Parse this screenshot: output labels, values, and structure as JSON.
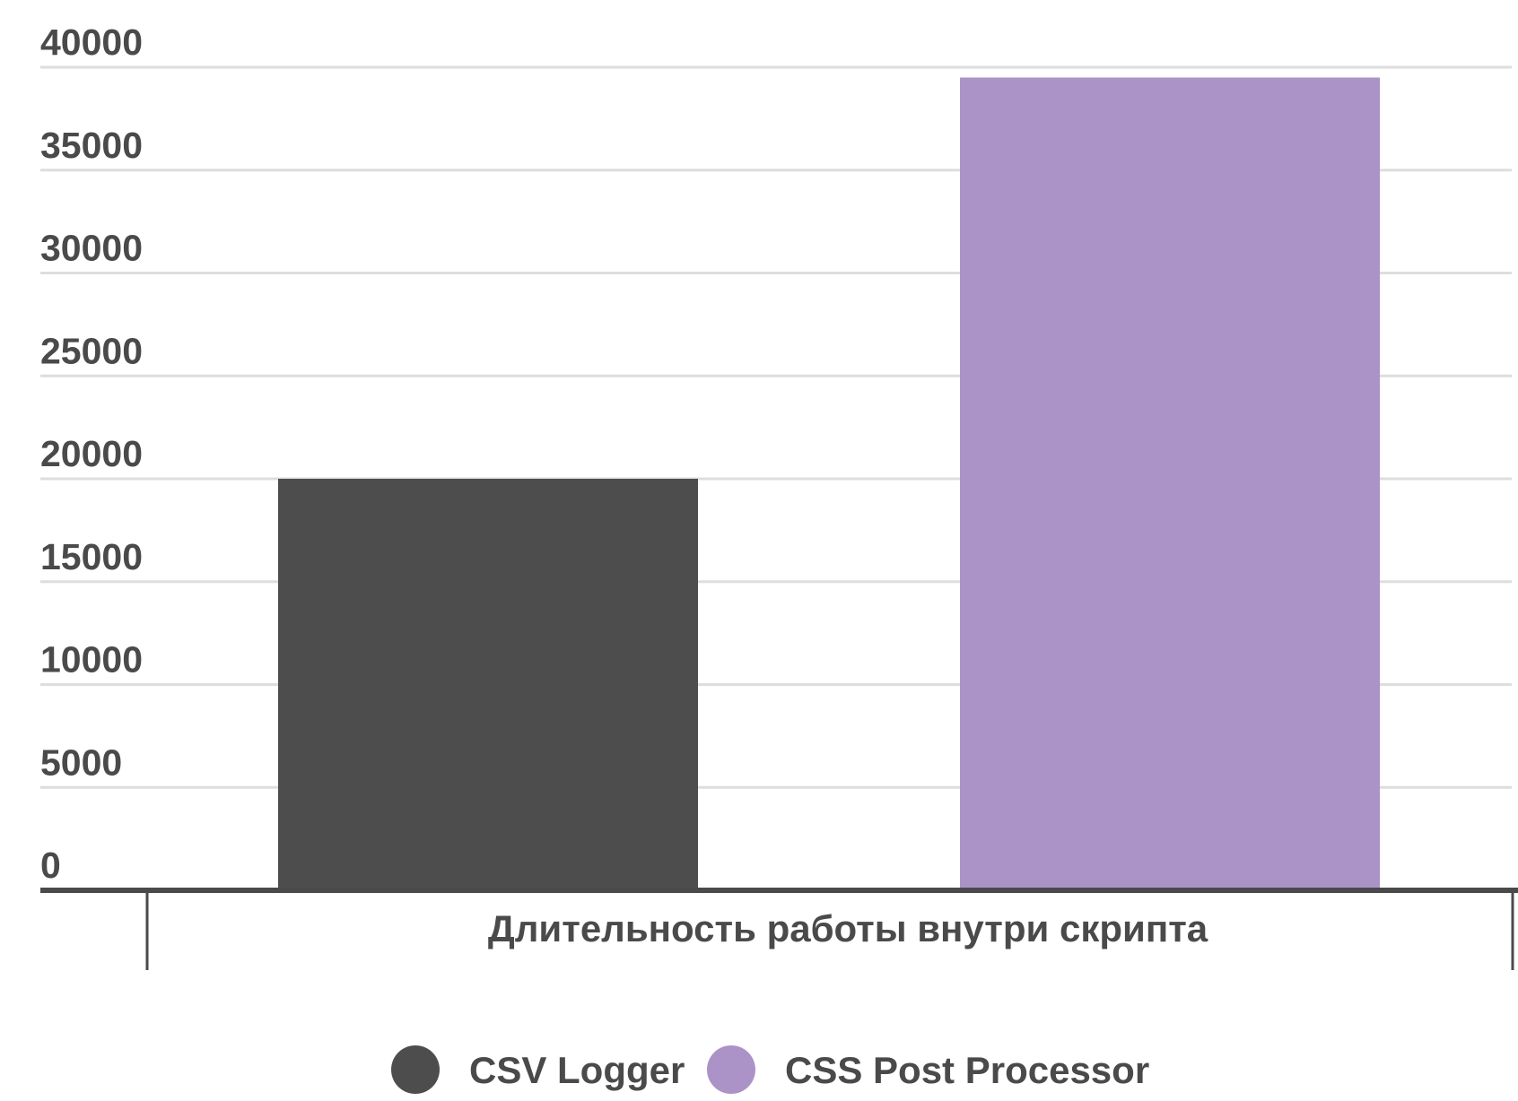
{
  "chart_data": {
    "type": "bar",
    "title": "",
    "xlabel": "",
    "ylabel": "",
    "categories": [
      "Длительность работы внутри скрипта"
    ],
    "series": [
      {
        "name": "CSV Logger",
        "values": [
          20000
        ],
        "color": "#4d4d4d"
      },
      {
        "name": "CSS Post Processor",
        "values": [
          39500
        ],
        "color": "#ab92c7"
      }
    ],
    "ylim": [
      0,
      40000
    ],
    "yticks": [
      0,
      5000,
      10000,
      15000,
      20000,
      25000,
      30000,
      35000,
      40000
    ],
    "grid": true,
    "legend_position": "bottom"
  },
  "colors": {
    "grid": "#dddddd",
    "axis": "#4a4a4a",
    "text": "#4a4a4a"
  }
}
